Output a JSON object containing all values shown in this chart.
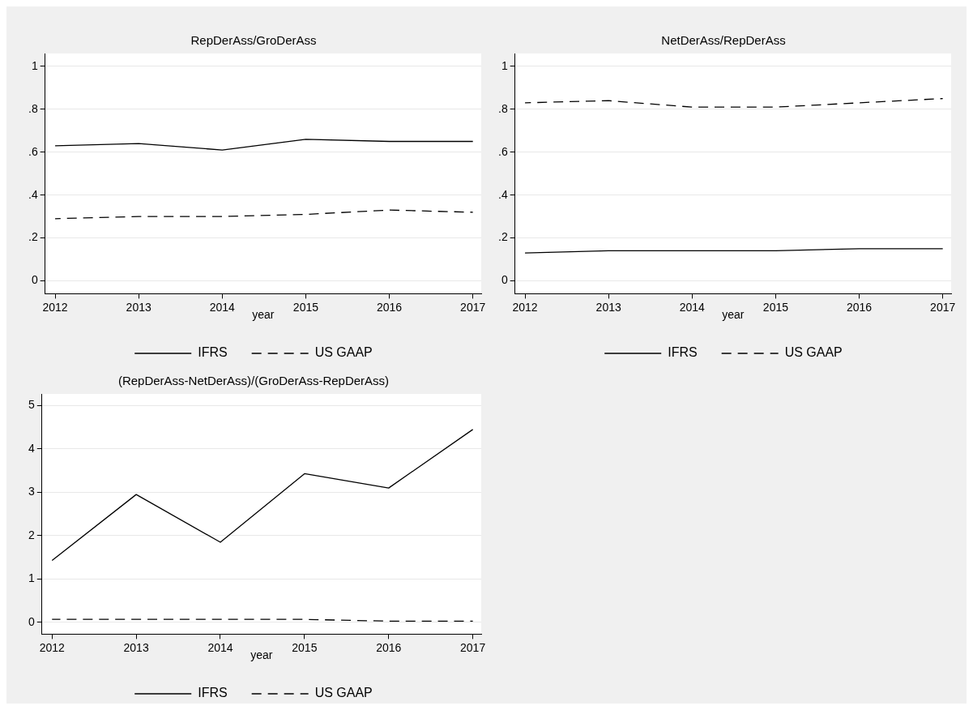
{
  "chart_data": [
    {
      "type": "line",
      "title": "RepDerAss/GroDerAss",
      "xlabel": "year",
      "x": [
        2012,
        2013,
        2014,
        2015,
        2016,
        2017
      ],
      "xlim": [
        2011.88,
        2017.1
      ],
      "xticks": [
        2012,
        2013,
        2014,
        2015,
        2016,
        2017
      ],
      "ylim": [
        -0.06,
        1.06
      ],
      "yticks": [
        0,
        {
          "value": 0.2,
          "label": ".2"
        },
        {
          "value": 0.4,
          "label": ".4"
        },
        {
          "value": 0.6,
          "label": ".6"
        },
        {
          "value": 0.8,
          "label": ".8"
        },
        1
      ],
      "grid": "y",
      "legend": "bottom",
      "marker": "none",
      "series": [
        {
          "name": "IFRS",
          "color": "#000000",
          "line_style": "solid",
          "values": [
            0.63,
            0.64,
            0.61,
            0.66,
            0.65,
            0.65
          ]
        },
        {
          "name": "US GAAP",
          "color": "#000000",
          "line_style": "dashed",
          "values": [
            0.29,
            0.3,
            0.3,
            0.31,
            0.33,
            0.32
          ]
        }
      ]
    },
    {
      "type": "line",
      "title": "NetDerAss/RepDerAss",
      "xlabel": "year",
      "x": [
        2012,
        2013,
        2014,
        2015,
        2016,
        2017
      ],
      "xlim": [
        2011.88,
        2017.1
      ],
      "xticks": [
        2012,
        2013,
        2014,
        2015,
        2016,
        2017
      ],
      "ylim": [
        -0.06,
        1.06
      ],
      "yticks": [
        0,
        {
          "value": 0.2,
          "label": ".2"
        },
        {
          "value": 0.4,
          "label": ".4"
        },
        {
          "value": 0.6,
          "label": ".6"
        },
        {
          "value": 0.8,
          "label": ".8"
        },
        1
      ],
      "grid": "y",
      "legend": "bottom",
      "marker": "none",
      "series": [
        {
          "name": "IFRS",
          "color": "#000000",
          "line_style": "solid",
          "values": [
            0.13,
            0.14,
            0.14,
            0.14,
            0.15,
            0.15
          ]
        },
        {
          "name": "US GAAP",
          "color": "#000000",
          "line_style": "dashed",
          "values": [
            0.83,
            0.84,
            0.81,
            0.81,
            0.83,
            0.85
          ]
        }
      ]
    },
    {
      "type": "line",
      "title": "(RepDerAss-NetDerAss)/(GroDerAss-RepDerAss)",
      "xlabel": "year",
      "x": [
        2012,
        2013,
        2014,
        2015,
        2016,
        2017
      ],
      "xlim": [
        2011.88,
        2017.1
      ],
      "xticks": [
        2012,
        2013,
        2014,
        2015,
        2016,
        2017
      ],
      "ylim": [
        -0.27,
        5.27
      ],
      "yticks": [
        0,
        1,
        2,
        3,
        4,
        5
      ],
      "grid": "y",
      "legend": "bottom",
      "marker": "none",
      "series": [
        {
          "name": "IFRS",
          "color": "#000000",
          "line_style": "solid",
          "values": [
            1.43,
            2.95,
            1.85,
            3.43,
            3.1,
            4.45
          ]
        },
        {
          "name": "US GAAP",
          "color": "#000000",
          "line_style": "dashed",
          "values": [
            0.07,
            0.07,
            0.07,
            0.07,
            0.03,
            0.03
          ]
        }
      ]
    }
  ]
}
